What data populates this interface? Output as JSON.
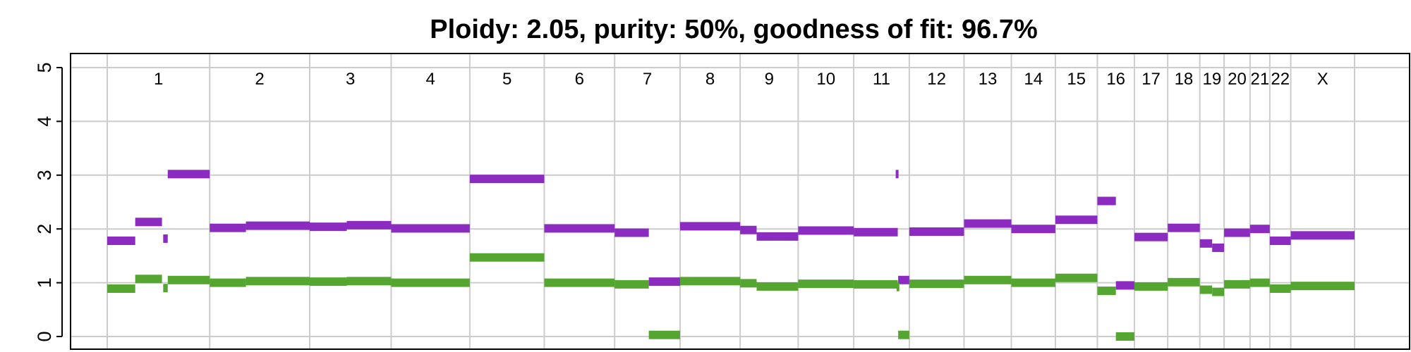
{
  "chart_data": {
    "type": "segment",
    "title": "Ploidy: 2.05, purity: 50%, goodness of fit: 96.7%",
    "ylim": [
      0,
      5
    ],
    "yticks": [
      "0",
      "1",
      "2",
      "3",
      "4",
      "5"
    ],
    "grid": true,
    "colors": {
      "major_copy_number": "#8B2BBF",
      "minor_copy_number": "#55A630"
    },
    "chromosomes": [
      {
        "name": "1",
        "length": 249
      },
      {
        "name": "2",
        "length": 243
      },
      {
        "name": "3",
        "length": 198
      },
      {
        "name": "4",
        "length": 191
      },
      {
        "name": "5",
        "length": 181
      },
      {
        "name": "6",
        "length": 171
      },
      {
        "name": "7",
        "length": 159
      },
      {
        "name": "8",
        "length": 146
      },
      {
        "name": "9",
        "length": 141
      },
      {
        "name": "10",
        "length": 135
      },
      {
        "name": "11",
        "length": 135
      },
      {
        "name": "12",
        "length": 133
      },
      {
        "name": "13",
        "length": 115
      },
      {
        "name": "14",
        "length": 107
      },
      {
        "name": "15",
        "length": 102
      },
      {
        "name": "16",
        "length": 90
      },
      {
        "name": "17",
        "length": 81
      },
      {
        "name": "18",
        "length": 78
      },
      {
        "name": "19",
        "length": 59
      },
      {
        "name": "20",
        "length": 63
      },
      {
        "name": "21",
        "length": 48
      },
      {
        "name": "22",
        "length": 51
      },
      {
        "name": "X",
        "length": 155
      }
    ],
    "series": [
      {
        "key": "major_copy_number",
        "segments": [
          {
            "chr": "1",
            "start": 0,
            "end": 68,
            "value": 1.78
          },
          {
            "chr": "1",
            "start": 68,
            "end": 133,
            "value": 2.13
          },
          {
            "chr": "1",
            "start": 136,
            "end": 147,
            "value": 1.82
          },
          {
            "chr": "1",
            "start": 147,
            "end": 249,
            "value": 3.02
          },
          {
            "chr": "2",
            "start": 0,
            "end": 88,
            "value": 2.02
          },
          {
            "chr": "2",
            "start": 88,
            "end": 243,
            "value": 2.06
          },
          {
            "chr": "3",
            "start": 0,
            "end": 90,
            "value": 2.04
          },
          {
            "chr": "3",
            "start": 90,
            "end": 198,
            "value": 2.07
          },
          {
            "chr": "4",
            "start": 0,
            "end": 191,
            "value": 2.01
          },
          {
            "chr": "5",
            "start": 0,
            "end": 181,
            "value": 2.93
          },
          {
            "chr": "6",
            "start": 0,
            "end": 171,
            "value": 2.01
          },
          {
            "chr": "7",
            "start": 0,
            "end": 83,
            "value": 1.93
          },
          {
            "chr": "7",
            "start": 83,
            "end": 159,
            "value": 1.02
          },
          {
            "chr": "8",
            "start": 0,
            "end": 146,
            "value": 2.05
          },
          {
            "chr": "9",
            "start": 0,
            "end": 40,
            "value": 1.98
          },
          {
            "chr": "9",
            "start": 40,
            "end": 141,
            "value": 1.86
          },
          {
            "chr": "10",
            "start": 0,
            "end": 135,
            "value": 1.97
          },
          {
            "chr": "11",
            "start": 0,
            "end": 107,
            "value": 1.94
          },
          {
            "chr": "11",
            "start": 102,
            "end": 108,
            "value": 3.02
          },
          {
            "chr": "11",
            "start": 108,
            "end": 135,
            "value": 1.05
          },
          {
            "chr": "12",
            "start": 0,
            "end": 133,
            "value": 1.95
          },
          {
            "chr": "13",
            "start": 0,
            "end": 115,
            "value": 2.1
          },
          {
            "chr": "14",
            "start": 0,
            "end": 107,
            "value": 2.0
          },
          {
            "chr": "15",
            "start": 0,
            "end": 102,
            "value": 2.17
          },
          {
            "chr": "16",
            "start": 0,
            "end": 45,
            "value": 2.52
          },
          {
            "chr": "16",
            "start": 45,
            "end": 90,
            "value": 0.95
          },
          {
            "chr": "17",
            "start": 0,
            "end": 81,
            "value": 1.85
          },
          {
            "chr": "18",
            "start": 0,
            "end": 78,
            "value": 2.02
          },
          {
            "chr": "19",
            "start": 0,
            "end": 30,
            "value": 1.73
          },
          {
            "chr": "19",
            "start": 30,
            "end": 59,
            "value": 1.65
          },
          {
            "chr": "20",
            "start": 0,
            "end": 63,
            "value": 1.93
          },
          {
            "chr": "21",
            "start": 0,
            "end": 48,
            "value": 2.0
          },
          {
            "chr": "22",
            "start": 0,
            "end": 51,
            "value": 1.78
          },
          {
            "chr": "X",
            "start": 0,
            "end": 155,
            "value": 1.88
          }
        ]
      },
      {
        "key": "minor_copy_number",
        "segments": [
          {
            "chr": "1",
            "start": 0,
            "end": 68,
            "value": 0.89
          },
          {
            "chr": "1",
            "start": 68,
            "end": 133,
            "value": 1.07
          },
          {
            "chr": "1",
            "start": 136,
            "end": 147,
            "value": 0.9
          },
          {
            "chr": "1",
            "start": 147,
            "end": 249,
            "value": 1.05
          },
          {
            "chr": "2",
            "start": 0,
            "end": 88,
            "value": 1.0
          },
          {
            "chr": "2",
            "start": 88,
            "end": 243,
            "value": 1.03
          },
          {
            "chr": "3",
            "start": 0,
            "end": 90,
            "value": 1.02
          },
          {
            "chr": "3",
            "start": 90,
            "end": 198,
            "value": 1.03
          },
          {
            "chr": "4",
            "start": 0,
            "end": 191,
            "value": 1.0
          },
          {
            "chr": "5",
            "start": 0,
            "end": 181,
            "value": 1.47
          },
          {
            "chr": "6",
            "start": 0,
            "end": 171,
            "value": 1.0
          },
          {
            "chr": "7",
            "start": 0,
            "end": 83,
            "value": 0.97
          },
          {
            "chr": "7",
            "start": 83,
            "end": 159,
            "value": 0.03
          },
          {
            "chr": "8",
            "start": 0,
            "end": 146,
            "value": 1.03
          },
          {
            "chr": "9",
            "start": 0,
            "end": 40,
            "value": 0.99
          },
          {
            "chr": "9",
            "start": 40,
            "end": 141,
            "value": 0.93
          },
          {
            "chr": "10",
            "start": 0,
            "end": 135,
            "value": 0.98
          },
          {
            "chr": "11",
            "start": 0,
            "end": 107,
            "value": 0.97
          },
          {
            "chr": "11",
            "start": 104,
            "end": 108,
            "value": 0.92
          },
          {
            "chr": "11",
            "start": 108,
            "end": 135,
            "value": 0.03
          },
          {
            "chr": "12",
            "start": 0,
            "end": 133,
            "value": 0.98
          },
          {
            "chr": "13",
            "start": 0,
            "end": 115,
            "value": 1.05
          },
          {
            "chr": "14",
            "start": 0,
            "end": 107,
            "value": 1.0
          },
          {
            "chr": "15",
            "start": 0,
            "end": 102,
            "value": 1.09
          },
          {
            "chr": "16",
            "start": 0,
            "end": 45,
            "value": 0.85
          },
          {
            "chr": "16",
            "start": 45,
            "end": 90,
            "value": 0.0
          },
          {
            "chr": "17",
            "start": 0,
            "end": 81,
            "value": 0.93
          },
          {
            "chr": "18",
            "start": 0,
            "end": 78,
            "value": 1.01
          },
          {
            "chr": "19",
            "start": 0,
            "end": 30,
            "value": 0.87
          },
          {
            "chr": "19",
            "start": 30,
            "end": 59,
            "value": 0.83
          },
          {
            "chr": "20",
            "start": 0,
            "end": 63,
            "value": 0.97
          },
          {
            "chr": "21",
            "start": 0,
            "end": 48,
            "value": 1.0
          },
          {
            "chr": "22",
            "start": 0,
            "end": 51,
            "value": 0.89
          },
          {
            "chr": "X",
            "start": 0,
            "end": 155,
            "value": 0.94
          }
        ]
      }
    ]
  }
}
